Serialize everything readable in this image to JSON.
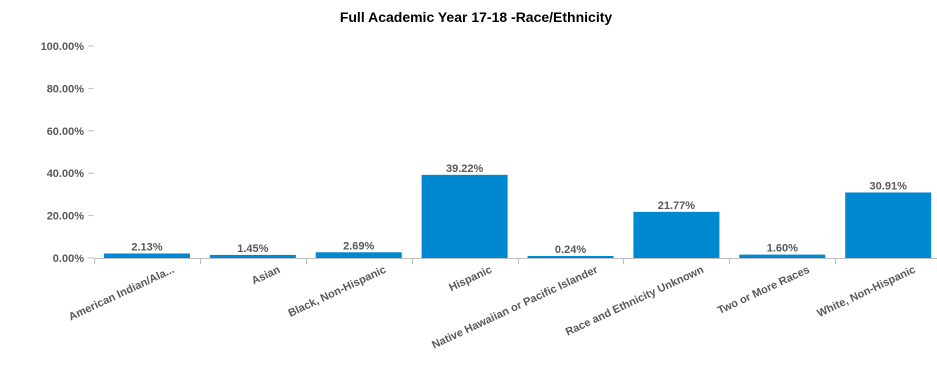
{
  "chart_data": {
    "type": "bar",
    "title": "Full Academic Year 17-18 -Race/Ethnicity",
    "xlabel": "",
    "ylabel": "",
    "categories": [
      "American Indian/Ala...",
      "Asian",
      "Black, Non-Hispanic",
      "Hispanic",
      "Native Hawaiian or Pacific Islander",
      "Race and Ethnicity Unknown",
      "Two or More Races",
      "White, Non-Hispanic"
    ],
    "values": [
      2.13,
      1.45,
      2.69,
      39.22,
      0.24,
      21.77,
      1.6,
      30.91
    ],
    "data_labels": [
      "2.13%",
      "1.45%",
      "2.69%",
      "39.22%",
      "0.24%",
      "21.77%",
      "1.60%",
      "30.91%"
    ],
    "ylim": [
      0,
      100
    ],
    "yticks": [
      0,
      20,
      40,
      60,
      80,
      100
    ],
    "ytick_labels": [
      "0.00%",
      "20.00%",
      "40.00%",
      "60.00%",
      "80.00%",
      "100.00%"
    ],
    "grid": false,
    "legend": "none",
    "bar_color": "#0088d1",
    "text_color": "#595959",
    "axis_color": "#bfbfbf"
  }
}
